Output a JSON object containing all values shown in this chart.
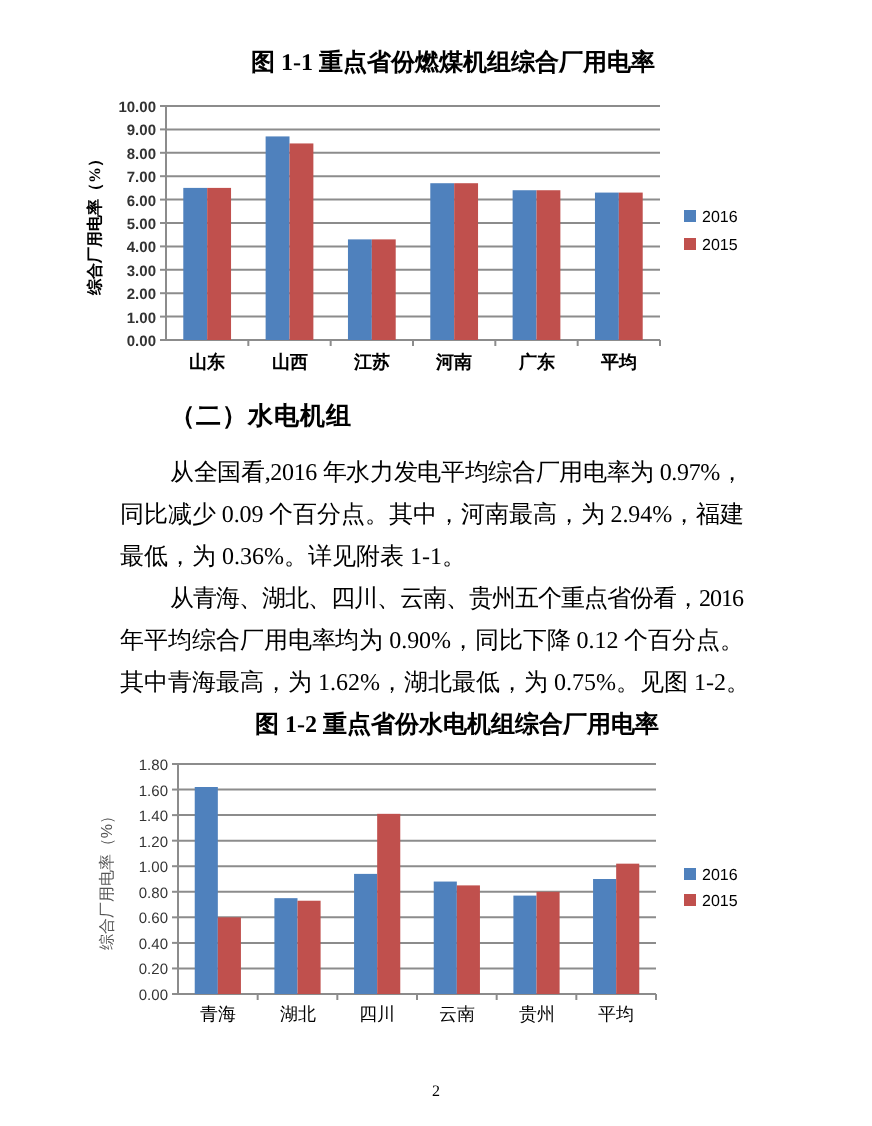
{
  "chart_data": [
    {
      "type": "bar",
      "title": "图 1-1  重点省份燃煤机组综合厂用电率",
      "ylabel": "综合厂用电率（%）",
      "categories": [
        "山东",
        "山西",
        "江苏",
        "河南",
        "广东",
        "平均"
      ],
      "series": [
        {
          "name": "2016",
          "color": "#4f81bd",
          "values": [
            6.5,
            8.7,
            4.3,
            6.7,
            6.4,
            6.3
          ]
        },
        {
          "name": "2015",
          "color": "#c0504d",
          "values": [
            6.5,
            8.4,
            4.3,
            6.7,
            6.4,
            6.3
          ]
        }
      ],
      "ylim": [
        0,
        10
      ],
      "yticks": [
        {
          "value": 0,
          "label": "0.00"
        },
        {
          "value": 1,
          "label": "1.00"
        },
        {
          "value": 2,
          "label": "2.00"
        },
        {
          "value": 3,
          "label": "3.00"
        },
        {
          "value": 4,
          "label": "4.00"
        },
        {
          "value": 5,
          "label": "5.00"
        },
        {
          "value": 6,
          "label": "6.00"
        },
        {
          "value": 7,
          "label": "7.00"
        },
        {
          "value": 8,
          "label": "8.00"
        },
        {
          "value": 9,
          "label": "9.00"
        },
        {
          "value": 10,
          "label": "10.00"
        }
      ],
      "grid": "y",
      "legend": "right"
    },
    {
      "type": "other",
      "title": "（二）水电机组",
      "annotations": [
        "从全国看,2016 年水力发电平均综合厂用电率为 0.97%，",
        "同比减少 0.09 个百分点。其中，河南最高，为 2.94%，福建",
        "最低，为 0.36%。详见附表 1-1。",
        "从青海、湖北、四川、云南、贵州五个重点省份看，2016",
        "年平均综合厂用电率均为 0.90%，同比下降 0.12 个百分点。",
        "其中青海最高，为 1.62%，湖北最低，为 0.75%。见图 1-2。"
      ]
    },
    {
      "type": "bar",
      "title": "图 1-2  重点省份水电机组综合厂用电率",
      "ylabel": "综合厂用电率（%）",
      "categories": [
        "青海",
        "湖北",
        "四川",
        "云南",
        "贵州",
        "平均"
      ],
      "series": [
        {
          "name": "2016",
          "color": "#4f81bd",
          "values": [
            1.62,
            0.75,
            0.94,
            0.88,
            0.77,
            0.9
          ]
        },
        {
          "name": "2015",
          "color": "#c0504d",
          "values": [
            0.6,
            0.73,
            1.41,
            0.85,
            0.8,
            1.02
          ]
        }
      ],
      "ylim": [
        0,
        1.8
      ],
      "yticks": [
        {
          "value": 0,
          "label": "0.00"
        },
        {
          "value": 0.2,
          "label": "0.20"
        },
        {
          "value": 0.4,
          "label": "0.40"
        },
        {
          "value": 0.6,
          "label": "0.60"
        },
        {
          "value": 0.8,
          "label": "0.80"
        },
        {
          "value": 1.0,
          "label": "1.00"
        },
        {
          "value": 1.2,
          "label": "1.20"
        },
        {
          "value": 1.4,
          "label": "1.40"
        },
        {
          "value": 1.6,
          "label": "1.60"
        },
        {
          "value": 1.8,
          "label": "1.80"
        }
      ],
      "grid": "y",
      "legend": "right",
      "annotations": [
        "2"
      ]
    }
  ]
}
